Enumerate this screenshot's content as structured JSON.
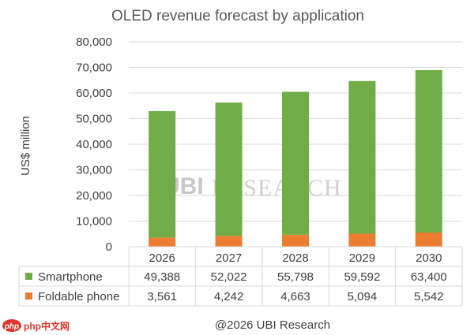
{
  "chart_data": {
    "type": "bar",
    "stacked": true,
    "title": "OLED revenue forecast by application",
    "ylabel": "US$ million",
    "xlabel": "",
    "ylim": [
      0,
      80000
    ],
    "yticks": [
      "0",
      "10,000",
      "20,000",
      "30,000",
      "40,000",
      "50,000",
      "60,000",
      "70,000",
      "80,000"
    ],
    "categories": [
      "2026",
      "2027",
      "2028",
      "2029",
      "2030"
    ],
    "grid": true,
    "legend": "table-bottom",
    "series": [
      {
        "name": "Foldable phone",
        "color": "#ed7d31",
        "values": [
          3561,
          4242,
          4663,
          5094,
          5542
        ],
        "labels": [
          "3,561",
          "4,242",
          "4,663",
          "5,094",
          "5,542"
        ]
      },
      {
        "name": "Smartphone",
        "color": "#70ad47",
        "values": [
          49388,
          52022,
          55798,
          59592,
          63400
        ],
        "labels": [
          "49,388",
          "52,022",
          "55,798",
          "59,592",
          "63,400"
        ]
      }
    ]
  },
  "watermark": {
    "logo": "UBI",
    "text": "RESEARCH"
  },
  "credit": "@2026 UBI Research",
  "corner_badge": {
    "icon": "php-logo-icon",
    "text": "php中文网"
  }
}
